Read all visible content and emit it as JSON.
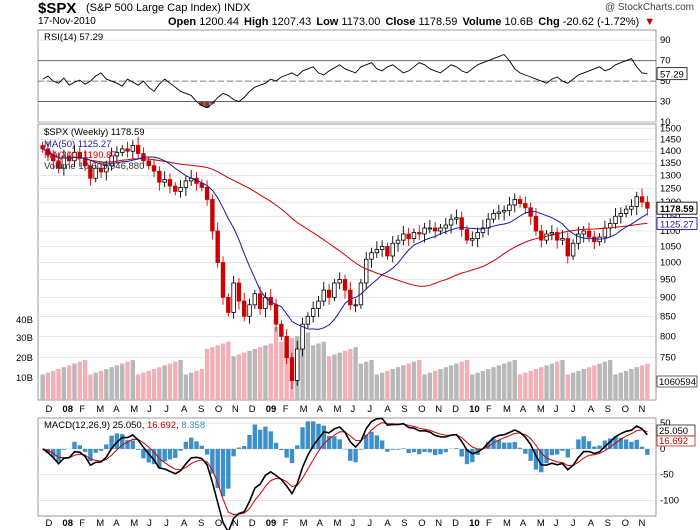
{
  "header": {
    "ticker": "$SPX",
    "name": "(S&P 500 Large Cap Index)",
    "exchange": "INDX",
    "watermark": "@ StockCharts.com",
    "date": "17-Nov-2010",
    "open_label": "Open",
    "open": "1200.44",
    "high_label": "High",
    "high": "1207.43",
    "low_label": "Low",
    "low": "1173.00",
    "close_label": "Close",
    "close": "1178.59",
    "volume_label": "Volume",
    "volume": "10.6B",
    "chg_label": "Chg",
    "chg": "-20.62 (-1.72%)"
  },
  "colors": {
    "up": "#000000",
    "down": "#cc0000",
    "ma50": "#1a1aa0",
    "ma200": "#cc0000",
    "vol_up": "#b8b8b8",
    "vol_down": "#f0b0b8",
    "macd_hist": "#3d8fc9",
    "macd_signal": "#cc0000",
    "grid": "#d8d8d8"
  },
  "chart_data": [
    {
      "type": "line",
      "name": "RSI",
      "legend": "RSI(14) 57.29",
      "last_value": "57.29",
      "ylim": [
        10,
        100
      ],
      "y_ticks": [
        90,
        70,
        50,
        30,
        10
      ],
      "reference_lines": [
        70,
        30
      ],
      "values": [
        52,
        55,
        50,
        48,
        53,
        46,
        49,
        51,
        47,
        50,
        55,
        58,
        52,
        50,
        48,
        45,
        52,
        49,
        46,
        50,
        44,
        40,
        47,
        52,
        48,
        44,
        40,
        38,
        36,
        30,
        26,
        24,
        28,
        34,
        38,
        36,
        32,
        30,
        34,
        40,
        44,
        46,
        48,
        52,
        50,
        54,
        56,
        58,
        55,
        60,
        62,
        64,
        58,
        56,
        60,
        63,
        66,
        62,
        60,
        58,
        64,
        66,
        68,
        62,
        60,
        64,
        66,
        62,
        58,
        60,
        64,
        68,
        66,
        62,
        60,
        58,
        62,
        66,
        64,
        60,
        58,
        62,
        66,
        68,
        70,
        72,
        74,
        76,
        70,
        62,
        58,
        56,
        54,
        52,
        50,
        48,
        52,
        54,
        50,
        48,
        52,
        56,
        58,
        60,
        62,
        64,
        60,
        62,
        66,
        68,
        70,
        72,
        64,
        58,
        57.29
      ]
    },
    {
      "type": "candlestick",
      "name": "$SPX",
      "legend": "$SPX (Weekly) 1178.59",
      "ylim": [
        660,
        1520
      ],
      "y_ticks": [
        1500,
        1450,
        1400,
        1350,
        1300,
        1250,
        1200,
        1150,
        1100,
        1050,
        1000,
        950,
        900,
        850,
        800,
        750
      ],
      "x_ticks": [
        "D",
        "08",
        "F",
        "M",
        "A",
        "M",
        "J",
        "J",
        "A",
        "S",
        "O",
        "N",
        "D",
        "09",
        "F",
        "M",
        "A",
        "M",
        "J",
        "J",
        "A",
        "S",
        "O",
        "N",
        "D",
        "10",
        "F",
        "M",
        "A",
        "M",
        "J",
        "J",
        "A",
        "S",
        "O",
        "N"
      ],
      "close": [
        1410,
        1385,
        1360,
        1330,
        1380,
        1360,
        1395,
        1370,
        1340,
        1290,
        1330,
        1315,
        1340,
        1380,
        1395,
        1410,
        1400,
        1425,
        1390,
        1360,
        1340,
        1318,
        1275,
        1285,
        1260,
        1240,
        1255,
        1280,
        1290,
        1270,
        1255,
        1210,
        1100,
        1000,
        900,
        860,
        940,
        890,
        850,
        880,
        910,
        870,
        900,
        880,
        830,
        800,
        750,
        700,
        770,
        830,
        850,
        870,
        890,
        920,
        900,
        940,
        950,
        920,
        880,
        880,
        940,
        1010,
        1030,
        1040,
        1050,
        1020,
        1060,
        1070,
        1090,
        1075,
        1095,
        1090,
        1110,
        1110,
        1100,
        1110,
        1120,
        1140,
        1145,
        1105,
        1070,
        1075,
        1095,
        1110,
        1140,
        1160,
        1165,
        1170,
        1190,
        1210,
        1195,
        1180,
        1150,
        1100,
        1070,
        1090,
        1095,
        1070,
        1075,
        1020,
        1060,
        1090,
        1100,
        1080,
        1065,
        1080,
        1110,
        1125,
        1150,
        1160,
        1175,
        1185,
        1220,
        1200,
        1178.59
      ],
      "ma50": {
        "legend": "MA(50) 1125.27",
        "last_value": "1125.27"
      },
      "ma200": {
        "legend": "MA(200) 1190.87",
        "last_value": "1190.87"
      },
      "volume": {
        "legend": "Volume 10,605,946,880",
        "last_value": "10605946880",
        "last_label": "1060594",
        "y_ticks": [
          "40B",
          "30B",
          "20B",
          "10B"
        ]
      }
    },
    {
      "type": "line",
      "name": "MACD",
      "legend_label": "MACD(12,26,9)",
      "macd_value": "25.050",
      "signal_value": "16.692",
      "hist_value": "8.358",
      "last_label_1": "25.050",
      "last_label_2": "16.692",
      "ylim": [
        -130,
        60
      ],
      "y_ticks": [
        50,
        0,
        -50,
        -100
      ],
      "x_ticks": [
        "D",
        "08",
        "F",
        "M",
        "A",
        "M",
        "J",
        "J",
        "A",
        "S",
        "O",
        "N",
        "D",
        "09",
        "F",
        "M",
        "A",
        "M",
        "J",
        "J",
        "A",
        "S",
        "O",
        "N",
        "D",
        "10",
        "F",
        "M",
        "A",
        "M",
        "J",
        "J",
        "A",
        "S",
        "O",
        "N"
      ]
    }
  ]
}
